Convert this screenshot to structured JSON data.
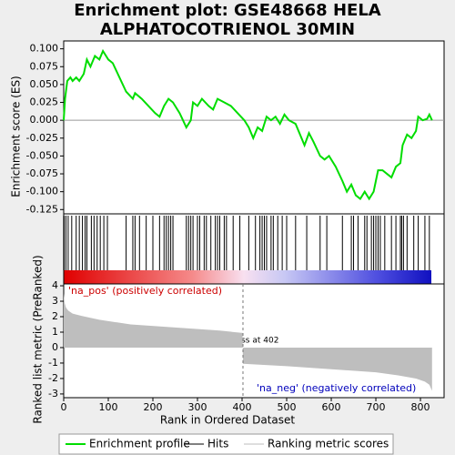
{
  "chart_data": {
    "type": "line",
    "title": [
      "Enrichment plot: GSE48668 HELA",
      "ALPHATOCOTRIENOL 30MIN"
    ],
    "ylabel": "Enrichment score (ES)",
    "y2label": "Ranked list metric (PreRanked)",
    "xlabel": "Rank in Ordered Dataset",
    "xlim": [
      0,
      853
    ],
    "xticks": [
      0,
      100,
      200,
      300,
      400,
      500,
      600,
      700,
      800
    ],
    "ylim": [
      -0.131,
      0.111
    ],
    "yticks": [
      {
        "value": 0.1,
        "label": "0.100"
      },
      {
        "value": 0.075,
        "label": "0.075"
      },
      {
        "value": 0.05,
        "label": "0.050"
      },
      {
        "value": 0.025,
        "label": "0.025"
      },
      {
        "value": 0,
        "label": "0.000"
      },
      {
        "value": -0.025,
        "label": "-0.025"
      },
      {
        "value": -0.05,
        "label": "-0.050"
      },
      {
        "value": -0.075,
        "label": "-0.075"
      },
      {
        "value": -0.1,
        "label": "-0.100"
      },
      {
        "value": -0.125,
        "label": "-0.125"
      }
    ],
    "y2lim": [
      -3.24,
      4.12
    ],
    "y2ticks": [
      4,
      3,
      2,
      1,
      0,
      -1,
      -2,
      -3
    ],
    "zero_cross_rank": 402,
    "annotations": [
      "'na_pos' (positively correlated)",
      "Zero cross at 402",
      "'na_neg' (negatively correlated)"
    ],
    "series": [
      {
        "name": "Enrichment profile",
        "color": "#00dd00",
        "x": [
          0,
          3,
          8,
          15,
          20,
          28,
          35,
          45,
          52,
          60,
          70,
          80,
          88,
          100,
          110,
          125,
          140,
          155,
          160,
          175,
          190,
          205,
          215,
          225,
          235,
          245,
          260,
          275,
          285,
          290,
          300,
          310,
          325,
          335,
          345,
          360,
          375,
          390,
          405,
          415,
          425,
          435,
          445,
          455,
          465,
          475,
          485,
          495,
          505,
          520,
          540,
          550,
          560,
          575,
          585,
          595,
          610,
          625,
          635,
          645,
          655,
          665,
          675,
          685,
          695,
          700,
          705,
          715,
          725,
          735,
          745,
          755,
          760,
          770,
          780,
          790,
          795,
          805,
          815,
          820,
          826
        ],
        "values": [
          0,
          0.03,
          0.055,
          0.06,
          0.055,
          0.06,
          0.055,
          0.065,
          0.085,
          0.075,
          0.09,
          0.085,
          0.097,
          0.085,
          0.08,
          0.06,
          0.04,
          0.03,
          0.038,
          0.03,
          0.02,
          0.01,
          0.005,
          0.02,
          0.03,
          0.025,
          0.01,
          -0.01,
          0,
          0.025,
          0.02,
          0.03,
          0.02,
          0.015,
          0.03,
          0.025,
          0.02,
          0.01,
          0,
          -0.01,
          -0.025,
          -0.01,
          -0.015,
          0.005,
          0,
          0.005,
          -0.005,
          0.008,
          0,
          -0.005,
          -0.035,
          -0.018,
          -0.03,
          -0.05,
          -0.055,
          -0.05,
          -0.065,
          -0.085,
          -0.1,
          -0.09,
          -0.105,
          -0.11,
          -0.1,
          -0.11,
          -0.1,
          -0.085,
          -0.07,
          -0.07,
          -0.075,
          -0.08,
          -0.065,
          -0.06,
          -0.035,
          -0.02,
          -0.025,
          -0.015,
          0.005,
          0,
          0.002,
          0.008,
          0
        ]
      },
      {
        "name": "Hits",
        "color": "#000000",
        "values": [
          1,
          5,
          10,
          18,
          28,
          35,
          42,
          48,
          52,
          62,
          68,
          75,
          82,
          90,
          98,
          140,
          155,
          160,
          170,
          185,
          200,
          215,
          225,
          230,
          235,
          240,
          245,
          275,
          280,
          285,
          290,
          300,
          305,
          315,
          320,
          330,
          340,
          345,
          350,
          360,
          365,
          380,
          395,
          415,
          430,
          440,
          445,
          450,
          455,
          465,
          470,
          480,
          490,
          500,
          520,
          545,
          575,
          590,
          625,
          645,
          650,
          660,
          675,
          680,
          690,
          695,
          700,
          705,
          710,
          720,
          735,
          745,
          755,
          758,
          762,
          770,
          785,
          795,
          810,
          820
        ]
      },
      {
        "name": "Ranking metric scores",
        "color": "#bebebe",
        "axis": "y2",
        "x": [
          0,
          2,
          5,
          10,
          20,
          40,
          80,
          150,
          250,
          350,
          401,
          402,
          500,
          600,
          700,
          750,
          790,
          810,
          820,
          826
        ],
        "values": [
          3.5,
          2.9,
          2.6,
          2.4,
          2.2,
          2.05,
          1.8,
          1.5,
          1.3,
          1.1,
          0.95,
          -1.05,
          -1.2,
          -1.4,
          -1.6,
          -1.8,
          -2.0,
          -2.2,
          -2.4,
          -2.8
        ]
      }
    ]
  }
}
